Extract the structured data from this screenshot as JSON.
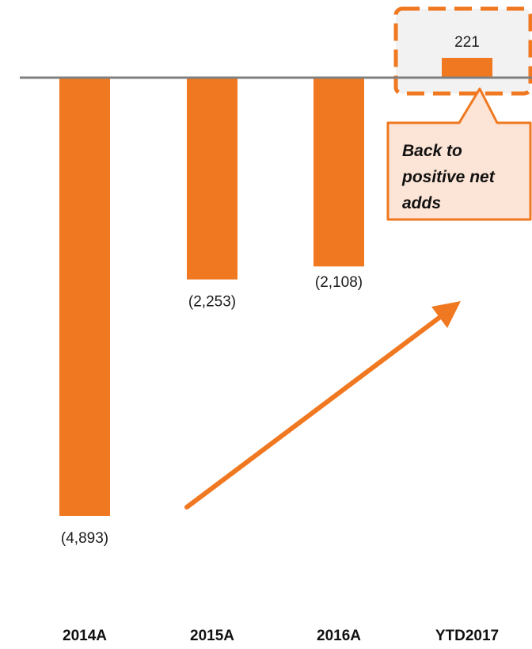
{
  "chart_data": {
    "type": "bar",
    "categories": [
      "2014A",
      "2015A",
      "2016A",
      "YTD2017"
    ],
    "values": [
      -4893,
      -2253,
      -2108,
      221
    ],
    "value_labels": [
      "(4,893)",
      "(2,253)",
      "(2,108)",
      "221"
    ],
    "title": "",
    "xlabel": "",
    "ylabel": "",
    "ylim": [
      -4893,
      221
    ],
    "grid": false,
    "legend": "none",
    "bar_color": "#F07820",
    "baseline_color": "#808080"
  },
  "annotations": {
    "callout_lines": [
      "Back to",
      "positive net",
      "adds"
    ],
    "callout_fill": "#FCE4D6",
    "highlight_fill": "#F2F2F2",
    "highlight_border": "#F07820",
    "arrow_color": "#F07820"
  }
}
